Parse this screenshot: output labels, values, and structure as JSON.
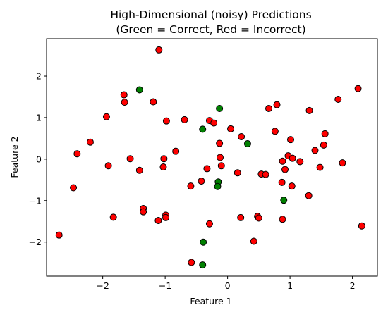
{
  "chart_data": {
    "type": "scatter",
    "title": "High-Dimensional (noisy) Predictions",
    "subtitle": "(Green = Correct, Red = Incorrect)",
    "xlabel": "Feature 1",
    "ylabel": "Feature 2",
    "xlim": [
      -2.9,
      2.4
    ],
    "ylim": [
      -2.82,
      2.9
    ],
    "xticks": [
      -2,
      -1,
      0,
      1,
      2
    ],
    "yticks": [
      -2,
      -1,
      0,
      1,
      2
    ],
    "xtick_labels": [
      "−2",
      "−1",
      "0",
      "1",
      "2"
    ],
    "ytick_labels": [
      "−2",
      "−1",
      "0",
      "1",
      "2"
    ],
    "grid": false,
    "colors": {
      "correct": "#008000",
      "incorrect": "#ff0000",
      "edge": "#000000"
    },
    "series": [
      {
        "label": "correct",
        "points": [
          [
            -1.41,
            1.67
          ],
          [
            -0.13,
            1.22
          ],
          [
            -0.4,
            0.72
          ],
          [
            0.32,
            0.37
          ],
          [
            -0.15,
            -0.55
          ],
          [
            -0.16,
            -0.66
          ],
          [
            0.9,
            -0.99
          ],
          [
            -0.39,
            -2.0
          ],
          [
            -0.4,
            -2.55
          ]
        ]
      },
      {
        "label": "incorrect",
        "points": [
          [
            -1.1,
            2.63
          ],
          [
            2.09,
            1.7
          ],
          [
            -1.66,
            1.55
          ],
          [
            -1.65,
            1.37
          ],
          [
            -1.19,
            1.38
          ],
          [
            1.77,
            1.44
          ],
          [
            0.79,
            1.31
          ],
          [
            1.31,
            1.17
          ],
          [
            0.66,
            1.22
          ],
          [
            -1.94,
            1.02
          ],
          [
            -0.98,
            0.92
          ],
          [
            -0.69,
            0.95
          ],
          [
            -0.29,
            0.93
          ],
          [
            -0.22,
            0.87
          ],
          [
            0.05,
            0.73
          ],
          [
            0.76,
            0.67
          ],
          [
            1.56,
            0.61
          ],
          [
            0.22,
            0.54
          ],
          [
            1.01,
            0.47
          ],
          [
            -2.2,
            0.41
          ],
          [
            -0.13,
            0.38
          ],
          [
            1.54,
            0.34
          ],
          [
            1.4,
            0.21
          ],
          [
            -0.83,
            0.19
          ],
          [
            -2.41,
            0.13
          ],
          [
            -0.12,
            0.04
          ],
          [
            0.97,
            0.08
          ],
          [
            1.04,
            0.02
          ],
          [
            -1.56,
            0.01
          ],
          [
            -1.02,
            0.01
          ],
          [
            1.16,
            -0.06
          ],
          [
            -0.1,
            -0.16
          ],
          [
            -1.91,
            -0.16
          ],
          [
            -1.03,
            -0.19
          ],
          [
            -0.33,
            -0.23
          ],
          [
            1.48,
            -0.2
          ],
          [
            0.92,
            -0.25
          ],
          [
            -1.41,
            -0.27
          ],
          [
            0.16,
            -0.33
          ],
          [
            0.54,
            -0.36
          ],
          [
            0.61,
            -0.37
          ],
          [
            1.84,
            -0.09
          ],
          [
            0.88,
            -0.05
          ],
          [
            -0.42,
            -0.53
          ],
          [
            0.87,
            -0.56
          ],
          [
            -0.59,
            -0.65
          ],
          [
            1.03,
            -0.65
          ],
          [
            -2.47,
            -0.69
          ],
          [
            1.3,
            -0.88
          ],
          [
            -1.35,
            -1.19
          ],
          [
            -1.35,
            -1.27
          ],
          [
            -0.99,
            -1.35
          ],
          [
            -0.99,
            -1.41
          ],
          [
            -1.83,
            -1.4
          ],
          [
            0.21,
            -1.41
          ],
          [
            0.48,
            -1.38
          ],
          [
            0.5,
            -1.42
          ],
          [
            0.88,
            -1.45
          ],
          [
            -1.11,
            -1.48
          ],
          [
            -0.29,
            -1.56
          ],
          [
            2.15,
            -1.61
          ],
          [
            -2.7,
            -1.83
          ],
          [
            0.42,
            -1.98
          ],
          [
            -0.58,
            -2.49
          ]
        ]
      }
    ]
  }
}
